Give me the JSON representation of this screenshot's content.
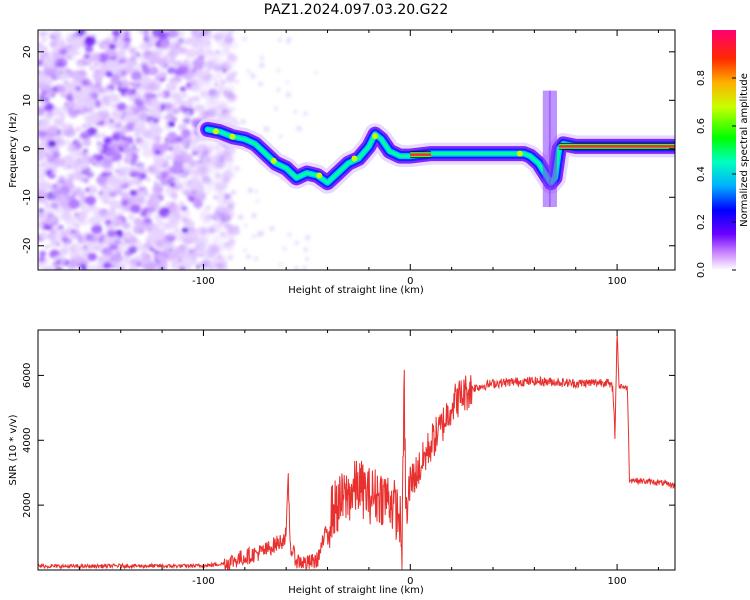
{
  "figure": {
    "title": "PAZ1.2024.097.03.20.G22"
  },
  "colors": {
    "snr_line": "#e8302e",
    "ridge_core": "#ff2a2a",
    "frame": "#000000"
  },
  "chart_data": [
    {
      "type": "heatmap",
      "panel": "spectrogram",
      "xlabel": "Height of straight line (km)",
      "ylabel": "Frequency (Hz)",
      "xlim": [
        -180,
        128
      ],
      "ylim": [
        -25,
        24.5
      ],
      "x_ticks": [
        {
          "value": -100,
          "label": "-100"
        },
        {
          "value": 0,
          "label": "0"
        },
        {
          "value": 100,
          "label": "100"
        }
      ],
      "y_ticks": [
        {
          "value": -20,
          "label": "-20"
        },
        {
          "value": -10,
          "label": "-10"
        },
        {
          "value": 0,
          "label": "0"
        },
        {
          "value": 10,
          "label": "10"
        },
        {
          "value": 20,
          "label": "20"
        }
      ],
      "ridge": {
        "x": [
          -98,
          -92,
          -86,
          -80,
          -75,
          -70,
          -65,
          -60,
          -55,
          -50,
          -45,
          -40,
          -35,
          -30,
          -25,
          -20,
          -17,
          -14,
          -10,
          -5,
          0,
          10,
          20,
          30,
          40,
          50,
          55,
          58,
          62,
          65,
          68,
          70,
          72,
          74,
          80,
          90,
          100,
          110,
          120,
          128
        ],
        "y": [
          4,
          3.5,
          2.5,
          2,
          1,
          -1,
          -3,
          -4,
          -6,
          -5,
          -5.5,
          -7,
          -5,
          -3,
          -2,
          0.5,
          3,
          2,
          -0.5,
          -1.5,
          -1.5,
          -1,
          -1,
          -1,
          -1,
          -1,
          -1,
          -1.5,
          -3,
          -5,
          -7,
          -6,
          0,
          1,
          0.5,
          0.5,
          0.5,
          0.5,
          0.5,
          0.5
        ]
      },
      "colorbar": {
        "label": "Normalized spectral amplitude",
        "range": [
          0,
          1
        ],
        "ticks": [
          {
            "value": 0.0,
            "label": "0.0"
          },
          {
            "value": 0.2,
            "label": "0.2"
          },
          {
            "value": 0.4,
            "label": "0.4"
          },
          {
            "value": 0.6,
            "label": "0.6"
          },
          {
            "value": 0.8,
            "label": "0.8"
          }
        ]
      }
    },
    {
      "type": "line",
      "panel": "snr",
      "xlabel": "Height of straight line (km)",
      "ylabel": "SNR (10 * v/v)",
      "xlim": [
        -180,
        128
      ],
      "ylim": [
        0,
        7400
      ],
      "x_ticks": [
        {
          "value": -100,
          "label": "-100"
        },
        {
          "value": 0,
          "label": "0"
        },
        {
          "value": 100,
          "label": "100"
        }
      ],
      "y_ticks": [
        {
          "value": 2000,
          "label": "2000"
        },
        {
          "value": 4000,
          "label": "4000"
        },
        {
          "value": 6000,
          "label": "6000"
        }
      ],
      "series": [
        {
          "x": [
            -180,
            -160,
            -140,
            -120,
            -100,
            -90,
            -80,
            -70,
            -65,
            -62,
            -60,
            -59,
            -58,
            -55,
            -50,
            -45,
            -42,
            -40,
            -38,
            -35,
            -30,
            -25,
            -20,
            -15,
            -10,
            -5,
            -4,
            -3,
            -2,
            0,
            5,
            10,
            15,
            20,
            25,
            30,
            40,
            50,
            60,
            70,
            80,
            90,
            95,
            98,
            99,
            100,
            101,
            102,
            104,
            105,
            106,
            110,
            120,
            128
          ],
          "y": [
            120,
            110,
            130,
            120,
            130,
            200,
            400,
            600,
            800,
            900,
            1100,
            2800,
            700,
            300,
            200,
            300,
            900,
            1300,
            1800,
            2000,
            2300,
            2600,
            2300,
            2300,
            2200,
            1600,
            300,
            5800,
            1500,
            2700,
            3200,
            3900,
            4400,
            5100,
            5400,
            5600,
            5750,
            5800,
            5820,
            5800,
            5750,
            5780,
            5800,
            5600,
            4100,
            7400,
            5600,
            5700,
            5600,
            5650,
            2800,
            2750,
            2700,
            2600
          ]
        }
      ]
    }
  ]
}
